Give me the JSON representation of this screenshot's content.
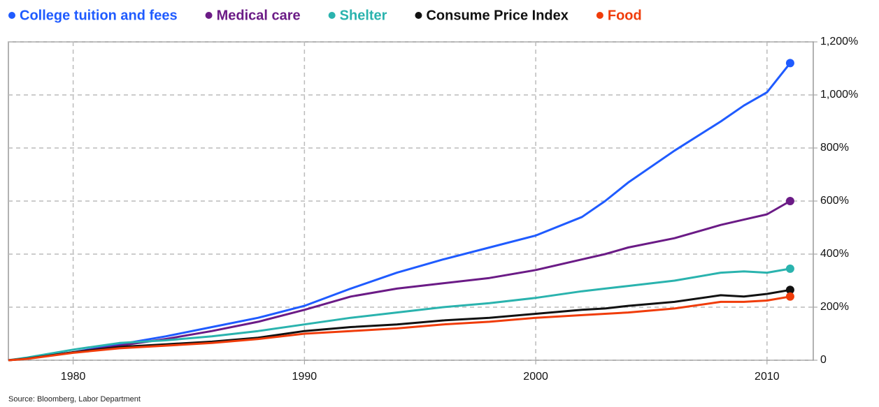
{
  "chart_data": {
    "type": "line",
    "source": "Source: Bloomberg, Labor Department",
    "x": [
      1977.2,
      1978,
      1980,
      1982,
      1984,
      1986,
      1988,
      1990,
      1992,
      1994,
      1996,
      1998,
      2000,
      2002,
      2003,
      2004,
      2006,
      2008,
      2009,
      2010,
      2011
    ],
    "series": [
      {
        "name": "College tuition and fees",
        "color": "#1f5bff",
        "values": [
          0,
          8,
          30,
          60,
          90,
          125,
          160,
          205,
          270,
          330,
          380,
          425,
          470,
          540,
          600,
          670,
          790,
          900,
          960,
          1010,
          1120
        ]
      },
      {
        "name": "Medical care",
        "color": "#6b1b86",
        "values": [
          0,
          6,
          30,
          55,
          80,
          110,
          145,
          190,
          240,
          270,
          290,
          310,
          340,
          380,
          400,
          425,
          460,
          510,
          530,
          550,
          600
        ]
      },
      {
        "name": "Shelter",
        "color": "#2ab3ae",
        "values": [
          0,
          10,
          40,
          65,
          75,
          90,
          110,
          135,
          160,
          180,
          200,
          215,
          235,
          260,
          270,
          280,
          300,
          330,
          335,
          330,
          345
        ]
      },
      {
        "name": "Consume Price Index",
        "color": "#111111",
        "values": [
          0,
          6,
          30,
          50,
          60,
          70,
          85,
          110,
          125,
          135,
          150,
          160,
          175,
          190,
          195,
          205,
          220,
          245,
          240,
          250,
          265
        ]
      },
      {
        "name": "Food",
        "color": "#f03c0a",
        "values": [
          0,
          5,
          28,
          45,
          55,
          65,
          80,
          100,
          110,
          120,
          135,
          145,
          160,
          170,
          175,
          180,
          195,
          220,
          220,
          225,
          240
        ]
      }
    ],
    "xlim": [
      1977.2,
      2012
    ],
    "xticks": [
      1980,
      1990,
      2000,
      2010
    ],
    "ylim": [
      0,
      1200
    ],
    "yticks": [
      0,
      {
        "value": 200,
        "label": "200%"
      },
      {
        "value": 400,
        "label": "400%"
      },
      {
        "value": 600,
        "label": "600%"
      },
      {
        "value": 800,
        "label": "800%"
      },
      {
        "value": 1000,
        "label": "1,000%"
      },
      {
        "value": 1200,
        "label": "1,200%"
      }
    ],
    "grid": true
  }
}
